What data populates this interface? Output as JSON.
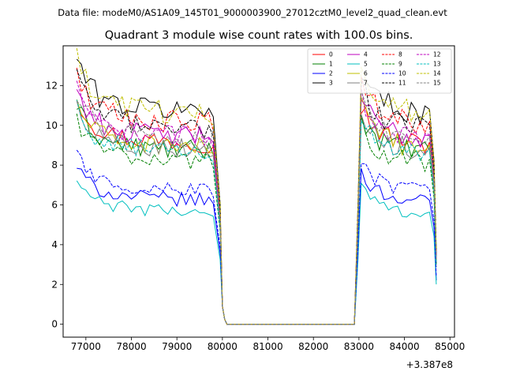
{
  "figure": {
    "suptitle": "Data file: modeM0/AS1A09_145T01_9000003900_27012cztM0_level2_quad_clean.evt"
  },
  "chart_data": {
    "type": "line",
    "title": "Quadrant 3 module wise count rates with 100.0s bins.",
    "xlabel": "",
    "ylabel": "",
    "x_offset_label": "+3.387e8",
    "xlim": [
      76500,
      85100
    ],
    "ylim": [
      -0.65,
      14.0
    ],
    "xticks": [
      77000,
      78000,
      79000,
      80000,
      81000,
      82000,
      83000,
      84000,
      85000
    ],
    "xtick_labels": [
      "77000",
      "78000",
      "79000",
      "80000",
      "81000",
      "82000",
      "83000",
      "84000",
      "85000"
    ],
    "yticks": [
      0,
      2,
      4,
      6,
      8,
      10,
      12
    ],
    "ytick_labels": [
      "0",
      "2",
      "4",
      "6",
      "8",
      "10",
      "12"
    ],
    "grid": false,
    "legend_position": "upper right",
    "legend_columns": 4,
    "series": [
      {
        "name": "0",
        "color": "#ff0000",
        "dash": "solid",
        "level": 9.4
      },
      {
        "name": "1",
        "color": "#008000",
        "dash": "solid",
        "level": 9.0
      },
      {
        "name": "2",
        "color": "#0000ff",
        "dash": "solid",
        "level": 6.5
      },
      {
        "name": "3",
        "color": "#000000",
        "dash": "solid",
        "level": 11.0
      },
      {
        "name": "4",
        "color": "#bf00bf",
        "dash": "solid",
        "level": 9.7
      },
      {
        "name": "5",
        "color": "#00bfbf",
        "dash": "solid",
        "level": 5.9
      },
      {
        "name": "6",
        "color": "#bfbf00",
        "dash": "solid",
        "level": 9.2
      },
      {
        "name": "7",
        "color": "#808080",
        "dash": "solid",
        "level": 9.1
      },
      {
        "name": "8",
        "color": "#ff0000",
        "dash": "dashed",
        "level": 10.4
      },
      {
        "name": "9",
        "color": "#008000",
        "dash": "dashed",
        "level": 8.5
      },
      {
        "name": "10",
        "color": "#0000ff",
        "dash": "dashed",
        "level": 7.0
      },
      {
        "name": "11",
        "color": "#000000",
        "dash": "dashed",
        "level": 10.2
      },
      {
        "name": "12",
        "color": "#bf00bf",
        "dash": "dashed",
        "level": 9.7
      },
      {
        "name": "13",
        "color": "#00bfbf",
        "dash": "dashed",
        "level": 8.9
      },
      {
        "name": "14",
        "color": "#bfbf00",
        "dash": "dashed",
        "level": 10.9
      },
      {
        "name": "15",
        "color": "#808080",
        "dash": "dashed",
        "level": 9.6
      }
    ],
    "segments": [
      {
        "x_start": 76800,
        "x_end": 79900,
        "step": 100
      },
      {
        "x_start": 79900,
        "x_end": 82900,
        "value": 0.0
      },
      {
        "x_start": 82900,
        "x_end": 84700,
        "step": 100
      }
    ]
  }
}
